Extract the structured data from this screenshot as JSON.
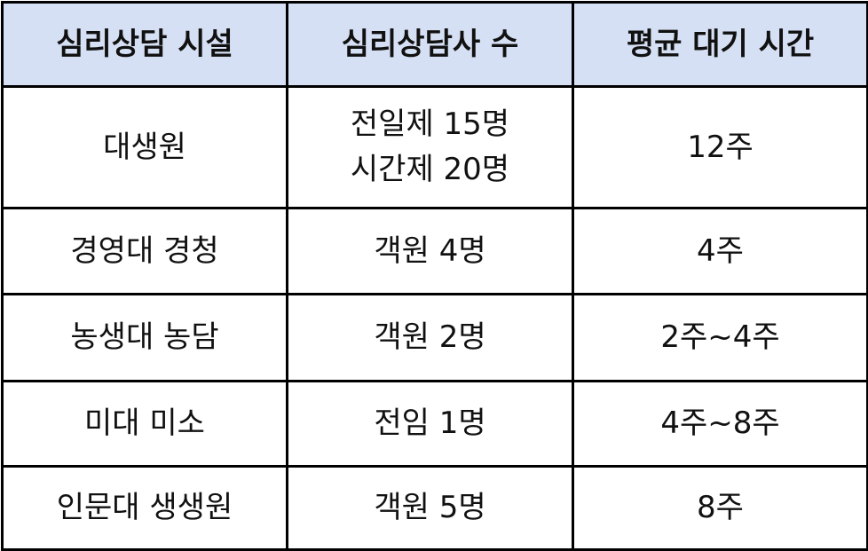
{
  "header": {
    "colors": {
      "header_bg": "#d6e0f4",
      "border": "#000000"
    },
    "columns": [
      "심리상담 시설",
      "심리상담사 수",
      "평균 대기 시간"
    ]
  },
  "rows": [
    {
      "facility": "대생원",
      "counselors": [
        "전일제 15명",
        "시간제 20명"
      ],
      "wait": "12주"
    },
    {
      "facility": "경영대 경청",
      "counselors": [
        "객원 4명"
      ],
      "wait": "4주"
    },
    {
      "facility": "농생대 농담",
      "counselors": [
        "객원 2명"
      ],
      "wait": "2주~4주"
    },
    {
      "facility": "미대 미소",
      "counselors": [
        "전임 1명"
      ],
      "wait": "4주~8주"
    },
    {
      "facility": "인문대 생생원",
      "counselors": [
        "객원 5명"
      ],
      "wait": "8주"
    }
  ]
}
